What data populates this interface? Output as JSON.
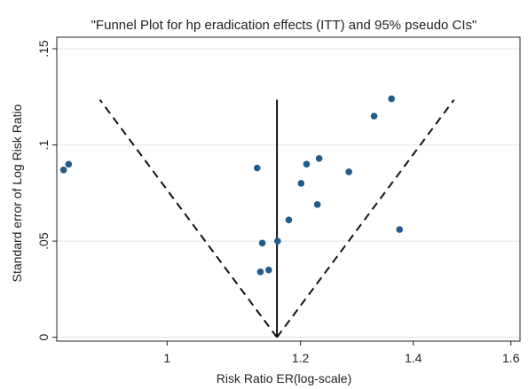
{
  "chart_data": {
    "type": "scatter",
    "title": "\"Funnel Plot for hp eradication effects (ITT) and 95% pseudo CIs\"",
    "xlabel": "Risk Ratio ER(log-scale)",
    "ylabel": "Standard error of Log Risk Ratio",
    "x_scale": "log",
    "xlim": [
      0.86,
      1.62
    ],
    "ylim": [
      -0.002,
      0.156
    ],
    "y_reversed": false,
    "x_ticks": [
      {
        "value": 1.0,
        "label": "1"
      },
      {
        "value": 1.2,
        "label": "1.2"
      },
      {
        "value": 1.4,
        "label": "1.4"
      },
      {
        "value": 1.6,
        "label": "1.6"
      }
    ],
    "y_ticks": [
      {
        "value": 0,
        "label": "0"
      },
      {
        "value": 0.05,
        "label": ".05"
      },
      {
        "value": 0.1,
        "label": ".1"
      },
      {
        "value": 0.15,
        "label": ".15"
      }
    ],
    "grid": "horizontal",
    "pooled_estimate": 1.162,
    "funnel_top_se": 0.1235,
    "points": [
      {
        "x": 0.868,
        "y": 0.087
      },
      {
        "x": 0.874,
        "y": 0.09
      },
      {
        "x": 1.131,
        "y": 0.088
      },
      {
        "x": 1.136,
        "y": 0.034
      },
      {
        "x": 1.139,
        "y": 0.049
      },
      {
        "x": 1.149,
        "y": 0.035
      },
      {
        "x": 1.163,
        "y": 0.05
      },
      {
        "x": 1.181,
        "y": 0.061
      },
      {
        "x": 1.201,
        "y": 0.08
      },
      {
        "x": 1.21,
        "y": 0.09
      },
      {
        "x": 1.228,
        "y": 0.069
      },
      {
        "x": 1.231,
        "y": 0.093
      },
      {
        "x": 1.282,
        "y": 0.086
      },
      {
        "x": 1.327,
        "y": 0.115
      },
      {
        "x": 1.359,
        "y": 0.124
      },
      {
        "x": 1.374,
        "y": 0.056
      }
    ],
    "colors": {
      "points": "#1f5b8c",
      "lines": "#111111",
      "grid": "#d9e6ee",
      "frame": "#222222"
    }
  }
}
